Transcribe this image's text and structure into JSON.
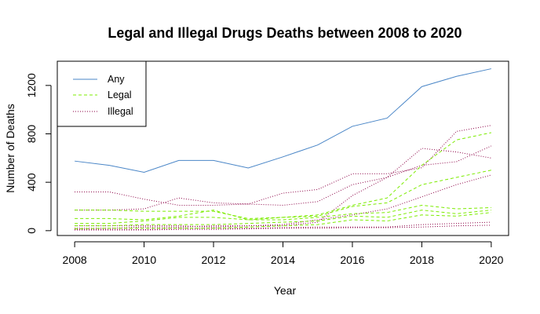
{
  "chart_data": {
    "type": "line",
    "title": "Legal and Illegal Drugs Deaths between 2008 to 2020",
    "xlabel": "Year",
    "ylabel": "Number of Deaths",
    "x": [
      2008,
      2009,
      2010,
      2011,
      2012,
      2013,
      2014,
      2015,
      2016,
      2017,
      2018,
      2019,
      2020
    ],
    "xlim": [
      2007.5,
      2020.5
    ],
    "ylim": [
      -40,
      1400
    ],
    "x_ticks": [
      2008,
      2010,
      2012,
      2014,
      2016,
      2018,
      2020
    ],
    "y_ticks": [
      0,
      400,
      800,
      1200
    ],
    "grid": false,
    "legend": {
      "position": "top-left",
      "entries": [
        "Any",
        "Legal",
        "Illegal"
      ]
    },
    "colors": {
      "Any": "#4a86c7",
      "Legal": "#7cec00",
      "Illegal": "#8b0045"
    },
    "series": [
      {
        "group": "Any",
        "style": "solid",
        "values": [
          575,
          540,
          482,
          580,
          580,
          518,
          610,
          708,
          862,
          930,
          1190,
          1275,
          1338
        ]
      },
      {
        "group": "Legal",
        "style": "dashed",
        "values": [
          170,
          170,
          160,
          160,
          160,
          100,
          110,
          130,
          210,
          270,
          540,
          750,
          810
        ]
      },
      {
        "group": "Legal",
        "style": "dashed",
        "values": [
          100,
          100,
          90,
          120,
          170,
          90,
          110,
          120,
          200,
          230,
          380,
          440,
          500
        ]
      },
      {
        "group": "Legal",
        "style": "dashed",
        "values": [
          60,
          60,
          80,
          110,
          110,
          90,
          90,
          110,
          140,
          150,
          210,
          180,
          190
        ]
      },
      {
        "group": "Legal",
        "style": "dashed",
        "values": [
          40,
          40,
          50,
          50,
          50,
          60,
          70,
          80,
          120,
          110,
          170,
          140,
          170
        ]
      },
      {
        "group": "Legal",
        "style": "dashed",
        "values": [
          15,
          20,
          20,
          20,
          20,
          30,
          40,
          50,
          90,
          80,
          130,
          120,
          150
        ]
      },
      {
        "group": "Illegal",
        "style": "dotted",
        "values": [
          320,
          320,
          260,
          210,
          210,
          220,
          310,
          340,
          470,
          470,
          520,
          820,
          870
        ]
      },
      {
        "group": "Illegal",
        "style": "dotted",
        "values": [
          170,
          170,
          180,
          270,
          230,
          220,
          210,
          240,
          380,
          440,
          540,
          570,
          700
        ]
      },
      {
        "group": "Illegal",
        "style": "dotted",
        "values": [
          40,
          40,
          40,
          40,
          30,
          40,
          40,
          70,
          290,
          440,
          680,
          650,
          600
        ]
      },
      {
        "group": "Illegal",
        "style": "dotted",
        "values": [
          20,
          20,
          30,
          30,
          40,
          40,
          50,
          90,
          130,
          180,
          280,
          380,
          460
        ]
      },
      {
        "group": "Illegal",
        "style": "dotted",
        "values": [
          10,
          10,
          10,
          20,
          20,
          20,
          25,
          30,
          30,
          30,
          50,
          60,
          70
        ]
      },
      {
        "group": "Illegal",
        "style": "dotted",
        "values": [
          5,
          5,
          5,
          10,
          10,
          15,
          20,
          20,
          25,
          25,
          30,
          40,
          45
        ]
      }
    ]
  }
}
